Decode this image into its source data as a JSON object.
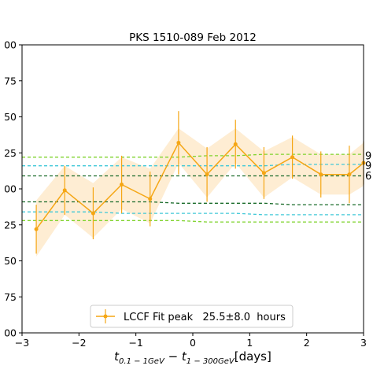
{
  "chart_data": {
    "type": "line",
    "title": "PKS 1510-089 Feb 2012",
    "xlabel_parts": {
      "a": "t",
      "a_sub": "0.1 − 1GeV",
      "minus": " − ",
      "b": "t",
      "b_sub": "1 − 300GeV",
      "unit": "[days]"
    },
    "xlim": [
      -3,
      3
    ],
    "ylim": [
      -100,
      100
    ],
    "xticks": [
      "−3",
      "−2",
      "−1",
      "0",
      "1",
      "2",
      "3"
    ],
    "xtick_values": [
      -3,
      -2,
      -1,
      0,
      1,
      2,
      3
    ],
    "yticks": [
      "00",
      "75",
      "50",
      "25",
      "00",
      "25",
      "50",
      "75",
      "00"
    ],
    "ytick_values": [
      100,
      75,
      50,
      25,
      0,
      -25,
      -50,
      -75,
      -100
    ],
    "series": [
      {
        "name": "LCCF Fit peak   25.5±8.0  hours",
        "color": "#f5a614",
        "x": [
          -2.75,
          -2.25,
          -1.75,
          -1.25,
          -0.75,
          -0.25,
          0.25,
          0.75,
          1.25,
          1.75,
          2.25,
          2.75,
          3.0
        ],
        "y": [
          -28,
          -1,
          -17,
          3,
          -7,
          32,
          10,
          31,
          11,
          22,
          10,
          10,
          18
        ],
        "yerr": [
          17,
          17,
          18,
          20,
          19,
          22,
          19,
          17,
          18,
          15,
          16,
          20,
          15
        ]
      }
    ],
    "band": {
      "color": "#fde7c4",
      "upper": [
        -8,
        16,
        4,
        22,
        14,
        42,
        28,
        42,
        26,
        36,
        24,
        24,
        32
      ],
      "lower": [
        -47,
        -18,
        -34,
        -14,
        -24,
        18,
        -6,
        18,
        -6,
        8,
        -4,
        -4,
        2
      ]
    },
    "significance_lines": [
      {
        "color": "#7fd32c",
        "upper": [
          22,
          22,
          22,
          22,
          22,
          22,
          23,
          23,
          24,
          24,
          24,
          24,
          24
        ],
        "lower": [
          -22,
          -22,
          -22,
          -22,
          -22,
          -22,
          -23,
          -23,
          -23,
          -23,
          -23,
          -23,
          -23
        ]
      },
      {
        "color": "#40c8d8",
        "upper": [
          16,
          16,
          16,
          16,
          16,
          16,
          16,
          16,
          16,
          17,
          17,
          17,
          17
        ],
        "lower": [
          -16,
          -16,
          -16,
          -17,
          -17,
          -17,
          -17,
          -17,
          -18,
          -18,
          -18,
          -18,
          -18
        ]
      },
      {
        "color": "#1a6b2a",
        "upper": [
          9,
          9,
          9,
          9,
          9,
          9,
          9,
          9,
          9,
          9,
          9,
          9,
          9
        ],
        "lower": [
          -9,
          -9,
          -9,
          -9,
          -9,
          -10,
          -10,
          -10,
          -10,
          -11,
          -11,
          -11,
          -11
        ]
      }
    ],
    "side_labels": [
      {
        "text": "9",
        "y": 23
      },
      {
        "text": "9",
        "y": 16
      },
      {
        "text": "6",
        "y": 9
      }
    ],
    "grid": false,
    "legend_position": "bottom-center"
  }
}
